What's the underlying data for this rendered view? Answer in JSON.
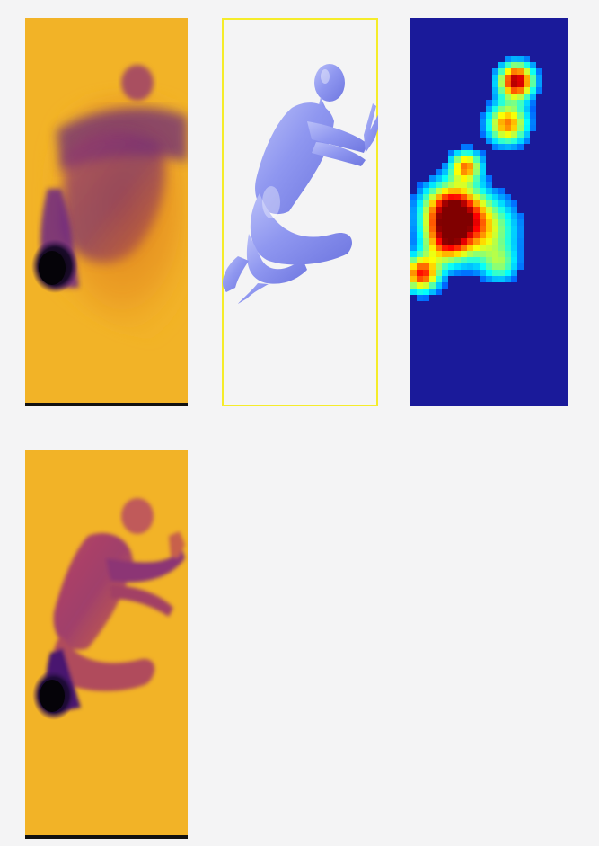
{
  "figure": {
    "panels": [
      {
        "id": "depth-prediction",
        "kind": "depth-map",
        "colormap": "inferno"
      },
      {
        "id": "mesh-render",
        "kind": "3d-body-mesh",
        "mesh_color": "#8f97f0",
        "frame_color": "#f5ec2a"
      },
      {
        "id": "attention-heatmap",
        "kind": "heatmap",
        "colormap": "jet"
      },
      {
        "id": "depth-ground-truth",
        "kind": "depth-map",
        "colormap": "inferno"
      }
    ],
    "colors": {
      "background": "#f4f4f5",
      "depth_far": "#f2b327",
      "depth_near": "#0a0510",
      "heat_low": "#1a1a9a",
      "heat_high": "#b30000"
    }
  }
}
